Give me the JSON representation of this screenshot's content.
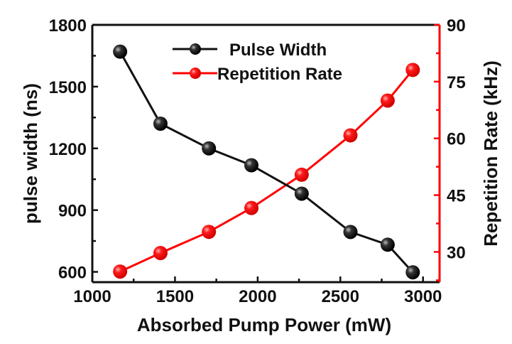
{
  "chart_data": {
    "type": "line",
    "title": "",
    "xlabel": "Absorbed Pump Power (mW)",
    "ylabel": "pulse width (ns)",
    "y2label": "Repetition Rate (kHz)",
    "xlim": [
      1000,
      3100
    ],
    "ylim": [
      550,
      1800
    ],
    "y2lim": [
      22,
      90
    ],
    "xticks": [
      "1000",
      "1500",
      "2000",
      "2500",
      "3000"
    ],
    "yticks": [
      "600",
      "900",
      "1200",
      "1500",
      "1800"
    ],
    "y2ticks": [
      "30",
      "45",
      "60",
      "75",
      "90"
    ],
    "grid": false,
    "legend_position": "top-center",
    "x": [
      1168,
      1412,
      1705,
      1962,
      2266,
      2561,
      2786,
      2938
    ],
    "series": [
      {
        "name": "Pulse Width",
        "axis": "left",
        "color": "#111111",
        "values": [
          1670,
          1320,
          1200,
          1118,
          980,
          794,
          732,
          598
        ]
      },
      {
        "name": "Repetition Rate",
        "axis": "right",
        "color": "#ff0000",
        "values": [
          24.8,
          29.7,
          35.3,
          41.6,
          50.4,
          60.8,
          70.0,
          78.1
        ]
      }
    ]
  }
}
